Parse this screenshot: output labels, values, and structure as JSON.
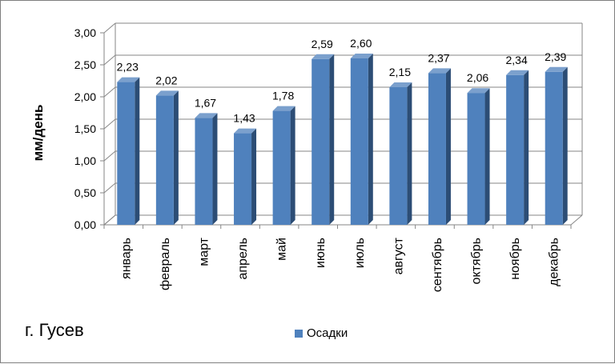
{
  "chart_data": {
    "type": "bar",
    "style": "3d-column",
    "categories": [
      "январь",
      "февраль",
      "март",
      "апрель",
      "май",
      "июнь",
      "июль",
      "август",
      "сентябрь",
      "октябрь",
      "ноябрь",
      "декабрь"
    ],
    "series": [
      {
        "name": "Осадки",
        "values": [
          2.23,
          2.02,
          1.67,
          1.43,
          1.78,
          2.59,
          2.6,
          2.15,
          2.37,
          2.06,
          2.34,
          2.39
        ],
        "value_labels": [
          "2,23",
          "2,02",
          "1,67",
          "1,43",
          "1,78",
          "2,59",
          "2,60",
          "2,15",
          "2,37",
          "2,06",
          "2,34",
          "2,39"
        ],
        "color": "#4f81bd"
      }
    ],
    "ylabel": "мм/день",
    "xlabel": "",
    "ylim": [
      0,
      3
    ],
    "yticks": [
      "0,00",
      "0,50",
      "1,00",
      "1,50",
      "2,00",
      "2,50",
      "3,00"
    ],
    "grid": true,
    "legend_position": "bottom"
  },
  "chart_caption": "г. Гусев",
  "colors": {
    "bar_front": "#4f81bd",
    "bar_side": "#2c4d75",
    "bar_top": "#7ba0cd",
    "grid": "#868686"
  }
}
